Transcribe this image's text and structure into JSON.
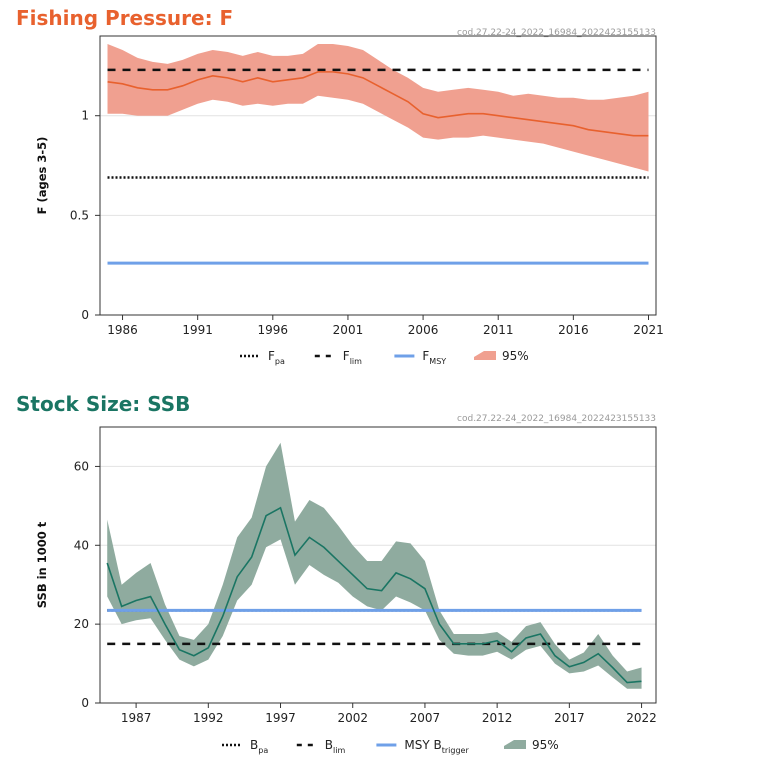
{
  "panels": {
    "f": {
      "title": "Fishing Pressure: F",
      "code": "cod.27.22-24_2022_16984_2022423155133"
    },
    "ssb": {
      "title": "Stock Size: SSB",
      "code": "cod.27.22-24_2022_16984_2022423155133"
    }
  },
  "colors": {
    "f_line": "#e8612e",
    "f_band": "#f0a090",
    "ssb_line": "#1a7563",
    "ssb_band": "#8fab9f",
    "msy": "#6fa0e8",
    "grid": "#e2e2e2",
    "ref": "#111111"
  },
  "chart_data": [
    {
      "type": "line",
      "title": "Fishing Pressure: F",
      "ylabel": "F (ages 3-5)",
      "xlim": [
        1984.5,
        2021.5
      ],
      "ylim": [
        0,
        1.4
      ],
      "xticks": [
        1986,
        1991,
        1996,
        2001,
        2006,
        2011,
        2016,
        2021
      ],
      "xtick_labels": [
        "1986",
        "1991",
        "1996",
        "2001",
        "2006",
        "2011",
        "2016",
        "2021"
      ],
      "yticks": [
        0,
        0.5,
        1
      ],
      "ytick_labels": [
        "0",
        "0.5",
        "1"
      ],
      "x": [
        1985,
        1986,
        1987,
        1988,
        1989,
        1990,
        1991,
        1992,
        1993,
        1994,
        1995,
        1996,
        1997,
        1998,
        1999,
        2000,
        2001,
        2002,
        2003,
        2004,
        2005,
        2006,
        2007,
        2008,
        2009,
        2010,
        2011,
        2012,
        2013,
        2014,
        2015,
        2016,
        2017,
        2018,
        2019,
        2020,
        2021
      ],
      "series": [
        {
          "name": "F",
          "values": [
            1.17,
            1.16,
            1.14,
            1.13,
            1.13,
            1.15,
            1.18,
            1.2,
            1.19,
            1.17,
            1.19,
            1.17,
            1.18,
            1.19,
            1.22,
            1.22,
            1.21,
            1.19,
            1.15,
            1.11,
            1.07,
            1.01,
            0.99,
            1.0,
            1.01,
            1.01,
            1.0,
            0.99,
            0.98,
            0.97,
            0.96,
            0.95,
            0.93,
            0.92,
            0.91,
            0.9,
            0.9
          ]
        }
      ],
      "band": {
        "name": "95%",
        "upper": [
          1.36,
          1.33,
          1.29,
          1.27,
          1.26,
          1.28,
          1.31,
          1.33,
          1.32,
          1.3,
          1.32,
          1.3,
          1.3,
          1.31,
          1.36,
          1.36,
          1.35,
          1.33,
          1.28,
          1.23,
          1.19,
          1.14,
          1.12,
          1.13,
          1.14,
          1.13,
          1.12,
          1.1,
          1.11,
          1.1,
          1.09,
          1.09,
          1.08,
          1.08,
          1.09,
          1.1,
          1.12
        ],
        "lower": [
          1.01,
          1.01,
          1.0,
          1.0,
          1.0,
          1.03,
          1.06,
          1.08,
          1.07,
          1.05,
          1.06,
          1.05,
          1.06,
          1.06,
          1.1,
          1.09,
          1.08,
          1.06,
          1.02,
          0.98,
          0.94,
          0.89,
          0.88,
          0.89,
          0.89,
          0.9,
          0.89,
          0.88,
          0.87,
          0.86,
          0.84,
          0.82,
          0.8,
          0.78,
          0.76,
          0.74,
          0.72
        ]
      },
      "reference_lines": [
        {
          "name": "Fpa",
          "value": 0.69,
          "style": "dotted"
        },
        {
          "name": "Flim",
          "value": 1.23,
          "style": "dashed"
        },
        {
          "name": "FMSY",
          "value": 0.26,
          "style": "solid"
        }
      ],
      "legend": [
        {
          "main": "F",
          "sub": "pa",
          "kind": "dotted"
        },
        {
          "main": "F",
          "sub": "lim",
          "kind": "dashed"
        },
        {
          "main": "F",
          "sub": "MSY",
          "kind": "msy"
        },
        {
          "main": "95%",
          "sub": "",
          "kind": "band"
        }
      ],
      "legend_position": "bottom",
      "grid": "horizontal"
    },
    {
      "type": "line",
      "title": "Stock Size: SSB",
      "ylabel": "SSB in 1000 t",
      "xlim": [
        1984.5,
        2023
      ],
      "ylim": [
        0,
        70
      ],
      "xticks": [
        1987,
        1992,
        1997,
        2002,
        2007,
        2012,
        2017,
        2022
      ],
      "xtick_labels": [
        "1987",
        "1992",
        "1997",
        "2002",
        "2007",
        "2012",
        "2017",
        "2022"
      ],
      "yticks": [
        0,
        20,
        40,
        60
      ],
      "ytick_labels": [
        "0",
        "20",
        "40",
        "60"
      ],
      "x": [
        1985,
        1986,
        1987,
        1988,
        1989,
        1990,
        1991,
        1992,
        1993,
        1994,
        1995,
        1996,
        1997,
        1998,
        1999,
        2000,
        2001,
        2002,
        2003,
        2004,
        2005,
        2006,
        2007,
        2008,
        2009,
        2010,
        2011,
        2012,
        2013,
        2014,
        2015,
        2016,
        2017,
        2018,
        2019,
        2020,
        2021,
        2022
      ],
      "series": [
        {
          "name": "SSB",
          "values": [
            35.5,
            24.5,
            26,
            27,
            20,
            13.5,
            12,
            14,
            22,
            32,
            37,
            47.5,
            49.5,
            37.5,
            42,
            39.5,
            36,
            32.5,
            29,
            28.5,
            33,
            31.5,
            29,
            20,
            15,
            15,
            15,
            15.8,
            13,
            16.5,
            17.5,
            12,
            9.2,
            10.3,
            12.5,
            9,
            5.2,
            5.5
          ]
        }
      ],
      "band": {
        "name": "95%",
        "upper": [
          46.5,
          30,
          33,
          35.5,
          25,
          17,
          16,
          20,
          30,
          42,
          47,
          60,
          66,
          46,
          51.5,
          49.5,
          45,
          40,
          36,
          36,
          41,
          40.5,
          36,
          23.5,
          17.5,
          17.5,
          17.5,
          18,
          15.5,
          19.5,
          20.5,
          15,
          11,
          12.8,
          17.5,
          12,
          8,
          9
        ],
        "lower": [
          27,
          20,
          21,
          21.5,
          16,
          11,
          9.3,
          11,
          17,
          26,
          30,
          39.5,
          41.5,
          30,
          35,
          32.5,
          30.5,
          27,
          24.5,
          23.5,
          27,
          25.5,
          23.5,
          16,
          12.5,
          12,
          12,
          13,
          11,
          13.5,
          14.5,
          10,
          7.5,
          8,
          9.5,
          6.5,
          3.6,
          3.6
        ]
      },
      "reference_lines": [
        {
          "name": "Bpa",
          "value": 23.5,
          "style": "dotted"
        },
        {
          "name": "Blim",
          "value": 15,
          "style": "dashed"
        },
        {
          "name": "MSY Btrigger",
          "value": 23.5,
          "style": "solid"
        }
      ],
      "legend": [
        {
          "main": "B",
          "sub": "pa",
          "kind": "dotted"
        },
        {
          "main": "B",
          "sub": "lim",
          "kind": "dashed"
        },
        {
          "main": "MSY B",
          "sub": "trigger",
          "kind": "msy"
        },
        {
          "main": "95%",
          "sub": "",
          "kind": "band"
        }
      ],
      "legend_position": "bottom",
      "grid": "horizontal"
    }
  ]
}
